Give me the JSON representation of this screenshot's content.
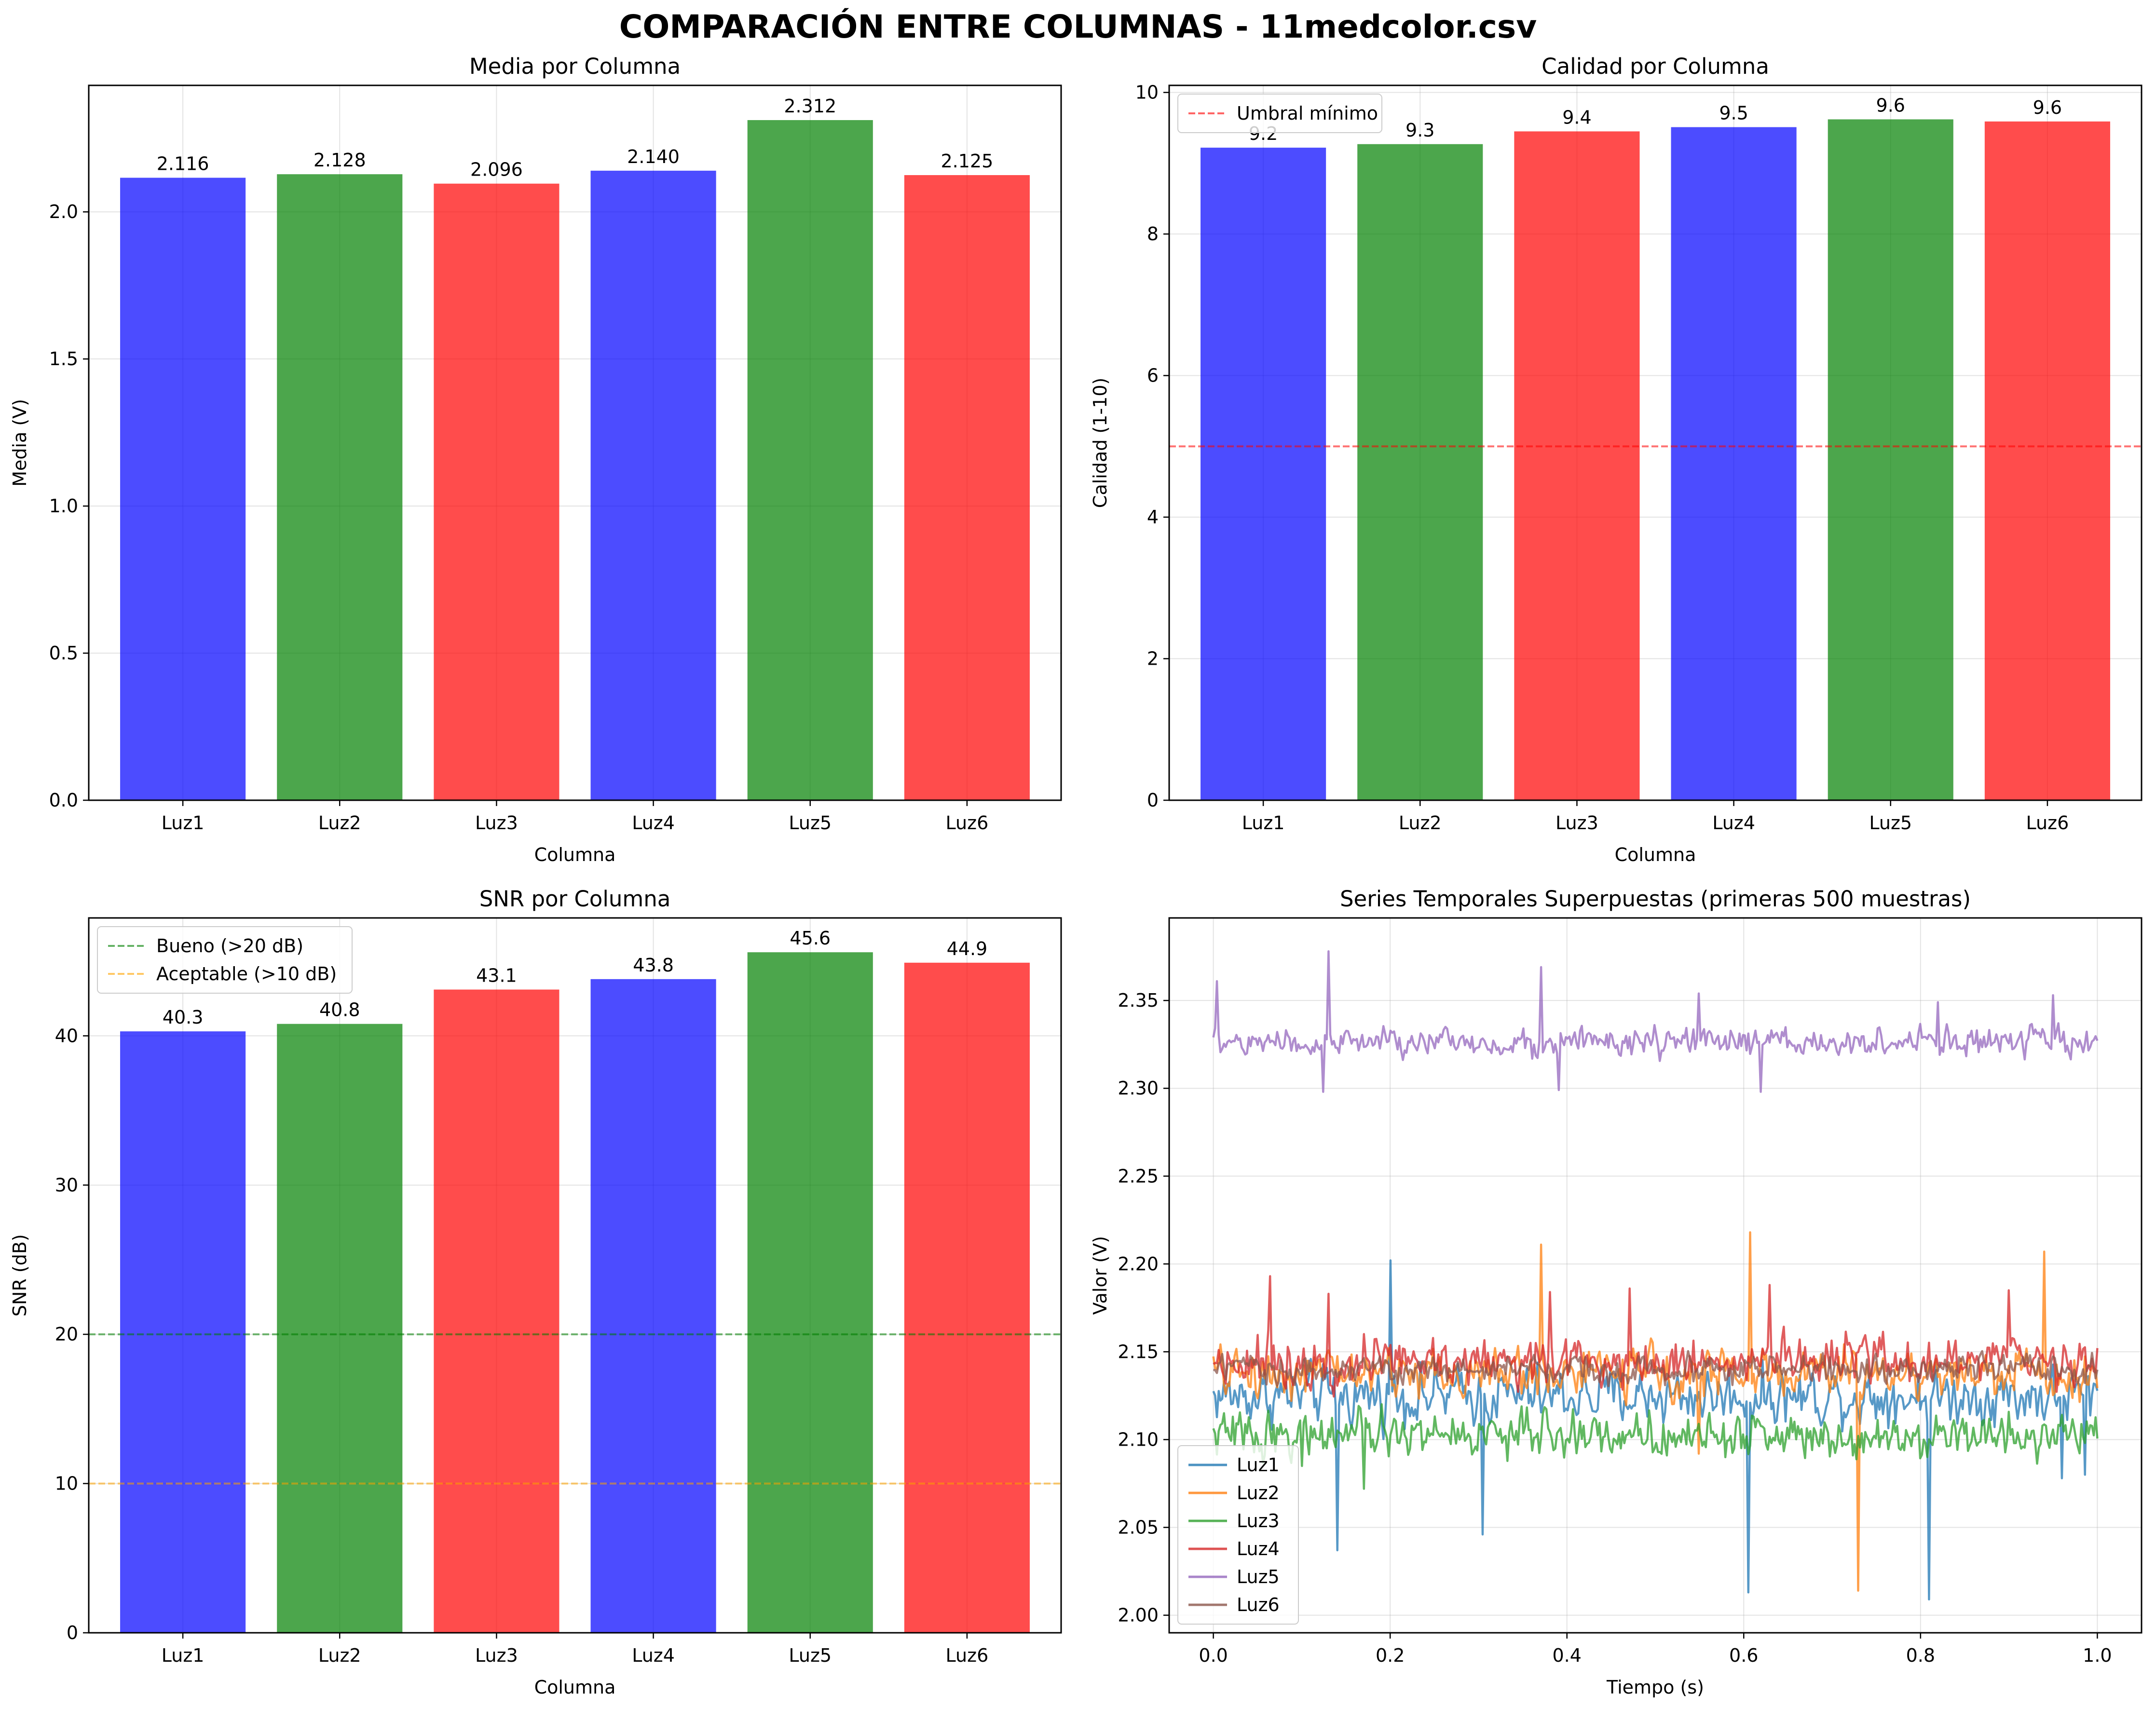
{
  "figure": {
    "suptitle": "COMPARACIÓN ENTRE COLUMNAS - 11medcolor.csv"
  },
  "colors": {
    "blue": "#0000ff",
    "green": "#008000",
    "red": "#ff0000",
    "orange": "#ffa500"
  },
  "chart_data": [
    {
      "type": "bar",
      "title": "Media por Columna",
      "xlabel": "Columna",
      "ylabel": "Media (V)",
      "categories": [
        "Luz1",
        "Luz2",
        "Luz3",
        "Luz4",
        "Luz5",
        "Luz6"
      ],
      "values": [
        2.116,
        2.128,
        2.096,
        2.14,
        2.312,
        2.125
      ],
      "value_labels": [
        "2.116",
        "2.128",
        "2.096",
        "2.140",
        "2.312",
        "2.125"
      ],
      "bar_colors": [
        "blue",
        "green",
        "red",
        "blue",
        "green",
        "red"
      ],
      "ylim": [
        0,
        2.43
      ],
      "yticks": [
        0,
        0.5,
        1.0,
        1.5,
        2.0
      ],
      "ytick_labels": [
        "0.0",
        "0.5",
        "1.0",
        "1.5",
        "2.0"
      ],
      "grid": true,
      "hlines": []
    },
    {
      "type": "bar",
      "title": "Calidad por Columna",
      "xlabel": "Columna",
      "ylabel": "Calidad (1-10)",
      "categories": [
        "Luz1",
        "Luz2",
        "Luz3",
        "Luz4",
        "Luz5",
        "Luz6"
      ],
      "values": [
        9.22,
        9.27,
        9.45,
        9.51,
        9.62,
        9.59
      ],
      "value_labels": [
        "9.2",
        "9.3",
        "9.4",
        "9.5",
        "9.6",
        "9.6"
      ],
      "bar_colors": [
        "blue",
        "green",
        "red",
        "blue",
        "green",
        "red"
      ],
      "ylim": [
        0,
        10.1
      ],
      "yticks": [
        0,
        2,
        4,
        6,
        8,
        10
      ],
      "ytick_labels": [
        "0",
        "2",
        "4",
        "6",
        "8",
        "10"
      ],
      "grid": true,
      "hlines": [
        {
          "y": 5,
          "color": "#ff0000",
          "label": "Umbral mínimo"
        }
      ],
      "legend_position": "upper-left"
    },
    {
      "type": "bar",
      "title": "SNR por Columna",
      "xlabel": "Columna",
      "ylabel": "SNR (dB)",
      "categories": [
        "Luz1",
        "Luz2",
        "Luz3",
        "Luz4",
        "Luz5",
        "Luz6"
      ],
      "values": [
        40.3,
        40.8,
        43.1,
        43.8,
        45.6,
        44.9
      ],
      "value_labels": [
        "40.3",
        "40.8",
        "43.1",
        "43.8",
        "45.6",
        "44.9"
      ],
      "bar_colors": [
        "blue",
        "green",
        "red",
        "blue",
        "green",
        "red"
      ],
      "ylim": [
        0,
        47.9
      ],
      "yticks": [
        0,
        10,
        20,
        30,
        40
      ],
      "ytick_labels": [
        "0",
        "10",
        "20",
        "30",
        "40"
      ],
      "grid": true,
      "hlines": [
        {
          "y": 20,
          "color": "#008000",
          "label": "Bueno (>20 dB)"
        },
        {
          "y": 10,
          "color": "#ffa500",
          "label": "Aceptable (>10 dB)"
        }
      ],
      "legend_position": "upper-left"
    },
    {
      "type": "line",
      "title": "Series Temporales Superpuestas (primeras 500 muestras)",
      "xlabel": "Tiempo (s)",
      "ylabel": "Valor (V)",
      "xlim": [
        -0.05,
        1.05
      ],
      "ylim": [
        1.99,
        2.397
      ],
      "xticks": [
        0.0,
        0.2,
        0.4,
        0.6,
        0.8,
        1.0
      ],
      "xtick_labels": [
        "0.0",
        "0.2",
        "0.4",
        "0.6",
        "0.8",
        "1.0"
      ],
      "yticks": [
        2.0,
        2.05,
        2.1,
        2.15,
        2.2,
        2.25,
        2.3,
        2.35
      ],
      "ytick_labels": [
        "2.00",
        "2.05",
        "2.10",
        "2.15",
        "2.20",
        "2.25",
        "2.30",
        "2.35"
      ],
      "grid": true,
      "legend_position": "lower-left",
      "samples": 500,
      "series": [
        {
          "name": "Luz1",
          "color": "#1f77b4",
          "approx_mean": 2.125,
          "approx_noise": 0.014,
          "spikes": [
            [
              0.2,
              2.202
            ],
            [
              0.14,
              2.037
            ],
            [
              0.305,
              2.046
            ],
            [
              0.605,
              2.013
            ],
            [
              0.81,
              2.009
            ],
            [
              0.96,
              2.078
            ],
            [
              0.985,
              2.08
            ]
          ]
        },
        {
          "name": "Luz2",
          "color": "#ff7f0e",
          "approx_mean": 2.138,
          "approx_noise": 0.012,
          "spikes": [
            [
              0.37,
              2.211
            ],
            [
              0.6075,
              2.218
            ],
            [
              0.73,
              2.014
            ],
            [
              0.94,
              2.207
            ],
            [
              0.55,
              2.092
            ]
          ]
        },
        {
          "name": "Luz3",
          "color": "#2ca02c",
          "approx_mean": 2.103,
          "approx_noise": 0.011,
          "spikes": [
            [
              0.17,
              2.072
            ],
            [
              0.58,
              2.09
            ],
            [
              0.1,
              2.085
            ]
          ]
        },
        {
          "name": "Luz4",
          "color": "#d62728",
          "approx_mean": 2.145,
          "approx_noise": 0.012,
          "spikes": [
            [
              0.065,
              2.193
            ],
            [
              0.13,
              2.183
            ],
            [
              0.38,
              2.184
            ],
            [
              0.47,
              2.186
            ],
            [
              0.63,
              2.188
            ],
            [
              0.9,
              2.185
            ]
          ]
        },
        {
          "name": "Luz5",
          "color": "#9467bd",
          "approx_mean": 2.326,
          "approx_noise": 0.007,
          "spikes": [
            [
              0.005,
              2.361
            ],
            [
              0.13,
              2.378
            ],
            [
              0.37,
              2.369
            ],
            [
              0.125,
              2.298
            ],
            [
              0.39,
              2.299
            ],
            [
              0.62,
              2.298
            ],
            [
              0.55,
              2.354
            ],
            [
              0.82,
              2.349
            ],
            [
              0.95,
              2.353
            ]
          ]
        },
        {
          "name": "Luz6",
          "color": "#8c564b",
          "approx_mean": 2.14,
          "approx_noise": 0.007,
          "spikes": []
        }
      ]
    }
  ]
}
